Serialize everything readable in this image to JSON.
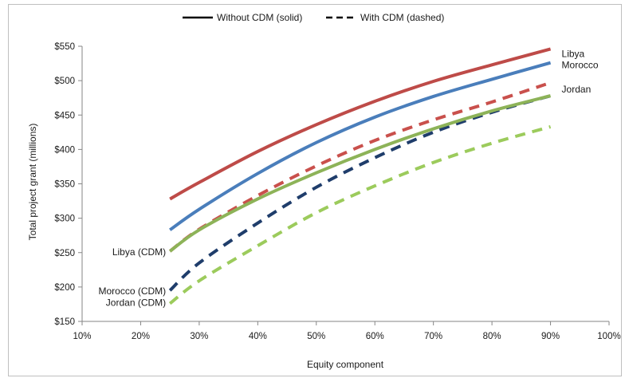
{
  "chart_data": {
    "type": "line",
    "xlabel": "Equity component",
    "ylabel": "Total project grant (millions)",
    "xlim": [
      0.1,
      1.0
    ],
    "ylim": [
      150,
      550
    ],
    "x_ticks": [
      0.1,
      0.2,
      0.3,
      0.4,
      0.5,
      0.6,
      0.7,
      0.8,
      0.9,
      1.0
    ],
    "x_tick_labels": [
      "10%",
      "20%",
      "30%",
      "40%",
      "50%",
      "60%",
      "70%",
      "80%",
      "90%",
      "100%"
    ],
    "y_ticks": [
      150,
      200,
      250,
      300,
      350,
      400,
      450,
      500,
      550
    ],
    "y_tick_labels": [
      "$150",
      "$200",
      "$250",
      "$300",
      "$350",
      "$400",
      "$450",
      "$500",
      "$550"
    ],
    "grid": false,
    "legend": {
      "placement": "top-center",
      "entries": [
        {
          "label": "Without CDM (solid)",
          "style": "solid"
        },
        {
          "label": "With CDM (dashed)",
          "style": "dashed"
        }
      ]
    },
    "series": [
      {
        "name": "Libya",
        "style": "solid",
        "color": "#be4b48",
        "x": [
          0.25,
          0.3,
          0.4,
          0.5,
          0.6,
          0.7,
          0.8,
          0.9
        ],
        "values": [
          328,
          352,
          397,
          436,
          470,
          499,
          523,
          546
        ]
      },
      {
        "name": "Morocco",
        "style": "solid",
        "color": "#4a7ebb",
        "x": [
          0.25,
          0.3,
          0.4,
          0.5,
          0.6,
          0.7,
          0.8,
          0.9
        ],
        "values": [
          283,
          313,
          365,
          410,
          447,
          477,
          502,
          526
        ]
      },
      {
        "name": "Jordan",
        "style": "solid",
        "color": "#8db358",
        "x": [
          0.25,
          0.3,
          0.4,
          0.5,
          0.6,
          0.7,
          0.8,
          0.9
        ],
        "values": [
          252,
          283,
          328,
          366,
          400,
          430,
          456,
          478
        ]
      },
      {
        "name": "Libya (CDM)",
        "style": "dashed",
        "color": "#c9504c",
        "x": [
          0.25,
          0.3,
          0.4,
          0.5,
          0.6,
          0.7,
          0.8,
          0.9
        ],
        "values": [
          252,
          284,
          333,
          376,
          413,
          443,
          469,
          497
        ]
      },
      {
        "name": "Morocco (CDM)",
        "style": "dashed",
        "color": "#1f3d6b",
        "x": [
          0.25,
          0.3,
          0.4,
          0.5,
          0.6,
          0.7,
          0.8,
          0.9
        ],
        "values": [
          195,
          235,
          293,
          345,
          388,
          425,
          454,
          478
        ]
      },
      {
        "name": "Jordan (CDM)",
        "style": "dashed",
        "color": "#9ccb5c",
        "x": [
          0.25,
          0.3,
          0.4,
          0.5,
          0.6,
          0.7,
          0.8,
          0.9
        ],
        "values": [
          176,
          209,
          260,
          308,
          347,
          381,
          409,
          433
        ]
      }
    ]
  }
}
